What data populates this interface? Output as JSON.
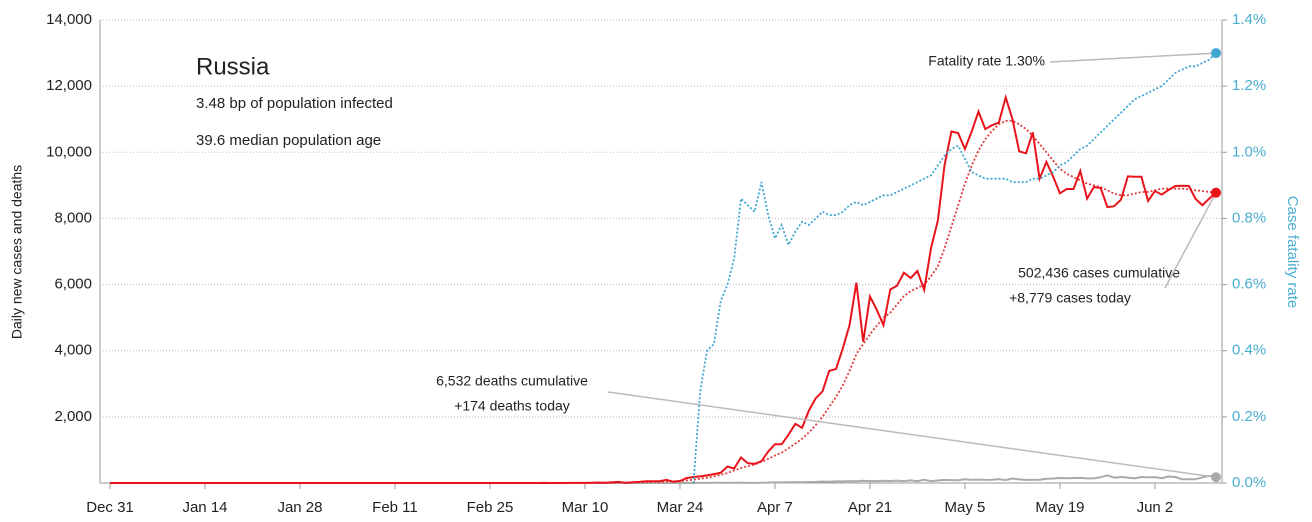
{
  "chart_data": {
    "type": "line",
    "title": "Russia",
    "subtitle": [
      "3.48 bp of population infected",
      "39.6 median population age"
    ],
    "ylabel": "Daily new cases and deaths",
    "y2label": "Case fatality rate",
    "annotations": [
      "Fatality rate 1.30%",
      "502,436 cases cumulative",
      "+8,779 cases today",
      "6,532 deaths cumulative",
      "+174 deaths today"
    ],
    "x": [
      "Dec 31",
      null,
      null,
      null,
      null,
      null,
      null,
      null,
      null,
      null,
      null,
      null,
      null,
      null,
      "Jan 14",
      null,
      null,
      null,
      null,
      null,
      null,
      null,
      null,
      null,
      null,
      null,
      null,
      null,
      "Jan 28",
      null,
      null,
      null,
      null,
      null,
      null,
      null,
      null,
      null,
      null,
      null,
      null,
      null,
      "Feb 11",
      null,
      null,
      null,
      null,
      null,
      null,
      null,
      null,
      null,
      null,
      null,
      null,
      null,
      "Feb 25",
      null,
      null,
      null,
      null,
      null,
      null,
      null,
      null,
      null,
      null,
      null,
      null,
      null,
      "Mar 10",
      null,
      null,
      null,
      null,
      null,
      null,
      null,
      null,
      null,
      null,
      null,
      null,
      null,
      "Mar 24",
      null,
      null,
      null,
      null,
      null,
      null,
      null,
      null,
      null,
      null,
      null,
      null,
      null,
      "Apr 7",
      null,
      null,
      null,
      null,
      null,
      null,
      null,
      null,
      null,
      null,
      null,
      null,
      null,
      "Apr 21",
      null,
      null,
      null,
      null,
      null,
      null,
      null,
      null,
      null,
      null,
      null,
      null,
      null,
      "May 5",
      null,
      null,
      null,
      null,
      null,
      null,
      null,
      null,
      null,
      null,
      null,
      null,
      null,
      "May 19",
      null,
      null,
      null,
      null,
      null,
      null,
      null,
      null,
      null,
      null,
      null,
      null,
      null,
      "Jun 2",
      null,
      null,
      null,
      null,
      null,
      null,
      null,
      null,
      null
    ],
    "ylim": [
      0,
      14000
    ],
    "yticks": [
      {
        "value": 2000,
        "label": "2,000"
      },
      {
        "value": 4000,
        "label": "4,000"
      },
      {
        "value": 6000,
        "label": "6,000"
      },
      {
        "value": 8000,
        "label": "8,000"
      },
      {
        "value": 10000,
        "label": "10,000"
      },
      {
        "value": 12000,
        "label": "12,000"
      },
      {
        "value": 14000,
        "label": "14,000"
      }
    ],
    "y2lim": [
      0,
      1.4
    ],
    "y2ticks": [
      {
        "value": 0,
        "label": "0.0%"
      },
      {
        "value": 0.2,
        "label": "0.2%"
      },
      {
        "value": 0.4,
        "label": "0.4%"
      },
      {
        "value": 0.6,
        "label": "0.6%"
      },
      {
        "value": 0.8,
        "label": "0.8%"
      },
      {
        "value": 1.0,
        "label": "1.0%"
      },
      {
        "value": 1.2,
        "label": "1.2%"
      },
      {
        "value": 1.4,
        "label": "1.4%"
      }
    ],
    "grid": true,
    "series": [
      {
        "color": "#aaaaaa",
        "dotted": false,
        "endpoint": true,
        "values": [
          0,
          0,
          0,
          0,
          0,
          0,
          0,
          0,
          0,
          0,
          0,
          0,
          0,
          0,
          0,
          0,
          0,
          0,
          0,
          0,
          0,
          0,
          0,
          0,
          0,
          0,
          0,
          0,
          0,
          0,
          0,
          0,
          0,
          0,
          0,
          0,
          0,
          0,
          0,
          0,
          0,
          0,
          0,
          0,
          0,
          0,
          0,
          0,
          0,
          0,
          0,
          0,
          0,
          0,
          0,
          0,
          0,
          0,
          0,
          0,
          0,
          0,
          0,
          0,
          0,
          0,
          0,
          0,
          0,
          0,
          0,
          0,
          0,
          0,
          0,
          0,
          0,
          0,
          0,
          0,
          0,
          0,
          0,
          0,
          1,
          2,
          1,
          4,
          4,
          8,
          7,
          4,
          6,
          13,
          4,
          4,
          10,
          13,
          18,
          18,
          22,
          28,
          24,
          31,
          32,
          41,
          37,
          48,
          47,
          57,
          51,
          66,
          57,
          58,
          66,
          60,
          72,
          57,
          79,
          53,
          96,
          58,
          76,
          95,
          88,
          86,
          115,
          93,
          103,
          95,
          99,
          119,
          88,
          135,
          108,
          93,
          94,
          96,
          127,
          135,
          150,
          141,
          150,
          153,
          139,
          138,
          174,
          232,
          161,
          181,
          162,
          138,
          182,
          169,
          178,
          144,
          197,
          181,
          112,
          113,
          116,
          171,
          216,
          174
        ]
      },
      {
        "color": "#e23a3a",
        "dotted": true,
        "endpoint": false,
        "values": [
          0,
          0,
          0,
          0,
          0,
          0,
          0,
          0,
          0,
          0,
          0,
          0,
          0,
          0,
          0,
          0,
          0,
          0,
          0,
          0,
          0,
          0,
          0,
          0,
          0,
          0,
          0,
          0,
          0,
          0,
          0,
          0,
          0,
          0,
          0,
          0,
          0,
          0,
          0,
          0,
          0,
          0,
          0,
          0,
          0,
          0,
          0,
          0,
          0,
          0,
          0,
          0,
          0,
          0,
          0,
          0,
          0,
          0,
          0,
          0,
          0,
          0,
          0,
          0,
          0,
          0,
          0,
          0,
          0,
          0,
          2,
          4,
          6,
          7,
          9,
          12,
          13,
          15,
          19,
          25,
          31,
          36,
          43,
          50,
          60,
          80,
          100,
          130,
          160,
          200,
          250,
          300,
          380,
          450,
          510,
          560,
          640,
          730,
          830,
          920,
          1050,
          1190,
          1340,
          1530,
          1750,
          2000,
          2300,
          2600,
          2950,
          3400,
          3900,
          4200,
          4500,
          4750,
          5000,
          5150,
          5400,
          5650,
          5800,
          5900,
          6000,
          6250,
          6550,
          7100,
          7750,
          8400,
          9050,
          9600,
          10050,
          10400,
          10650,
          10850,
          10950,
          10950,
          10850,
          10700,
          10500,
          10250,
          10000,
          9750,
          9500,
          9350,
          9250,
          9150,
          9050,
          9000,
          8950,
          8850,
          8750,
          8700,
          8700,
          8750,
          8800,
          8800,
          8850,
          8900,
          8900,
          8900,
          8900,
          8880,
          8850,
          8830,
          8800,
          8790
        ]
      },
      {
        "color": "#e8141b",
        "dotted": false,
        "endpoint": true,
        "values": [
          0,
          0,
          0,
          0,
          0,
          0,
          0,
          0,
          0,
          0,
          0,
          0,
          0,
          0,
          0,
          0,
          0,
          0,
          0,
          0,
          0,
          0,
          0,
          0,
          0,
          0,
          0,
          0,
          0,
          0,
          0,
          0,
          0,
          0,
          0,
          0,
          0,
          0,
          0,
          0,
          0,
          0,
          0,
          0,
          0,
          0,
          0,
          0,
          0,
          0,
          0,
          0,
          0,
          0,
          0,
          0,
          0,
          0,
          0,
          0,
          0,
          0,
          0,
          0,
          2,
          1,
          0,
          0,
          3,
          4,
          3,
          8,
          14,
          6,
          20,
          34,
          4,
          21,
          33,
          52,
          54,
          53,
          93,
          40,
          60,
          150,
          180,
          200,
          230,
          270,
          310,
          500,
          440,
          770,
          600,
          580,
          660,
          950,
          1170,
          1170,
          1460,
          1790,
          1670,
          2190,
          2560,
          2770,
          3390,
          3450,
          4070,
          4780,
          6060,
          4270,
          5640,
          5240,
          4770,
          5850,
          5970,
          6360,
          6200,
          6410,
          5840,
          7100,
          7930,
          9620,
          10630,
          10580,
          10100,
          10630,
          11230,
          10700,
          10820,
          10900,
          11660,
          11010,
          10030,
          9970,
          10600,
          9200,
          9710,
          9260,
          8760,
          8890,
          8890,
          9430,
          8600,
          8950,
          8920,
          8340,
          8370,
          8570,
          9270,
          9260,
          9260,
          8530,
          8830,
          8720,
          8860,
          8980,
          8990,
          8980,
          8590,
          8400,
          8600,
          8779
        ]
      },
      {
        "color": "#3fa6cf",
        "dotted": true,
        "endpoint": true,
        "axis": "y2",
        "values": [
          null,
          null,
          null,
          null,
          null,
          null,
          null,
          null,
          null,
          null,
          null,
          null,
          null,
          null,
          null,
          null,
          null,
          null,
          null,
          null,
          null,
          null,
          null,
          null,
          null,
          null,
          null,
          null,
          null,
          null,
          null,
          null,
          null,
          null,
          null,
          null,
          null,
          null,
          null,
          null,
          null,
          null,
          null,
          null,
          null,
          null,
          null,
          null,
          null,
          null,
          null,
          null,
          null,
          null,
          null,
          null,
          null,
          null,
          null,
          null,
          null,
          null,
          null,
          null,
          null,
          null,
          null,
          null,
          null,
          null,
          null,
          null,
          null,
          null,
          null,
          null,
          null,
          null,
          null,
          null,
          null,
          null,
          null,
          null,
          null,
          null,
          0,
          0.28,
          0.4,
          0.42,
          0.55,
          0.6,
          0.68,
          0.86,
          0.84,
          0.82,
          0.91,
          0.81,
          0.74,
          0.78,
          0.72,
          0.76,
          0.79,
          0.78,
          0.8,
          0.82,
          0.81,
          0.81,
          0.82,
          0.84,
          0.85,
          0.84,
          0.85,
          0.86,
          0.87,
          0.87,
          0.88,
          0.89,
          0.9,
          0.91,
          0.92,
          0.93,
          0.96,
          0.99,
          1.01,
          1.02,
          0.98,
          0.94,
          0.93,
          0.92,
          0.92,
          0.92,
          0.92,
          0.91,
          0.91,
          0.91,
          0.92,
          0.92,
          0.93,
          0.94,
          0.96,
          0.97,
          0.99,
          1.01,
          1.02,
          1.04,
          1.06,
          1.08,
          1.1,
          1.12,
          1.14,
          1.16,
          1.17,
          1.18,
          1.19,
          1.2,
          1.22,
          1.24,
          1.25,
          1.26,
          1.26,
          1.27,
          1.28,
          1.3
        ]
      }
    ]
  }
}
